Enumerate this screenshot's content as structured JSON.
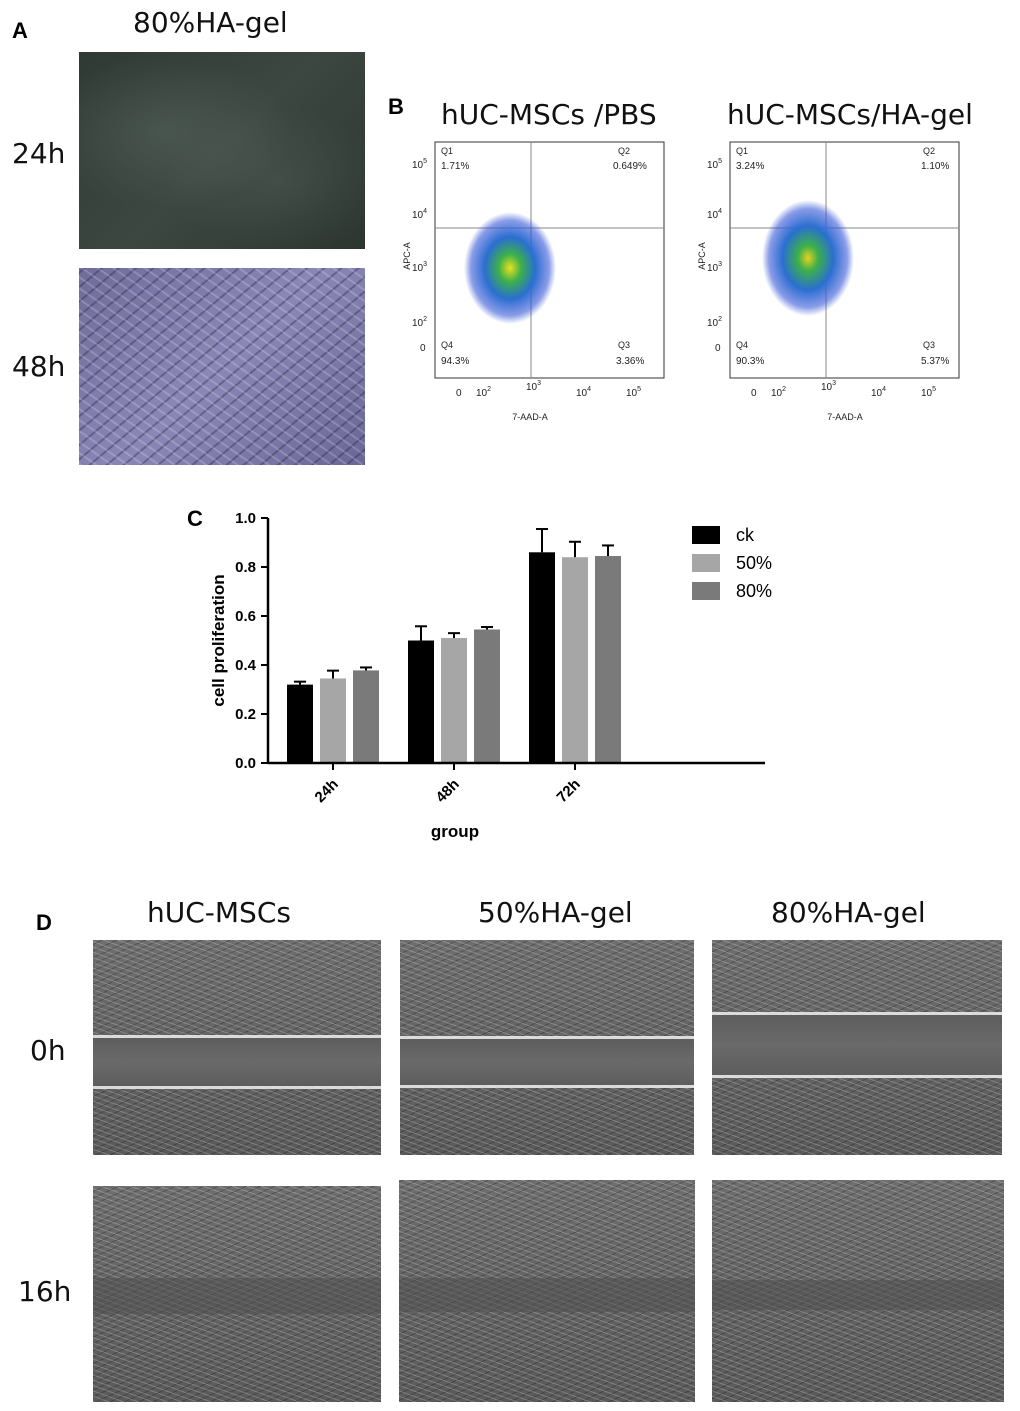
{
  "panel_a": {
    "letter": "A",
    "title": "80%HA-gel",
    "row_labels": [
      "24h",
      "48h"
    ]
  },
  "panel_b": {
    "letter": "B",
    "plots": [
      {
        "title": "hUC-MSCs /PBS",
        "xlabel": "7-AAD-A",
        "ylabel": "APC-A",
        "quadrants": [
          {
            "name": "Q1",
            "value": "1.71%"
          },
          {
            "name": "Q2",
            "value": "0.649%"
          },
          {
            "name": "Q3",
            "value": "3.36%"
          },
          {
            "name": "Q4",
            "value": "94.3%"
          }
        ]
      },
      {
        "title": "hUC-MSCs/HA-gel",
        "xlabel": "7-AAD-A",
        "ylabel": "APC-A",
        "quadrants": [
          {
            "name": "Q1",
            "value": "3.24%"
          },
          {
            "name": "Q2",
            "value": "1.10%"
          },
          {
            "name": "Q3",
            "value": "5.37%"
          },
          {
            "name": "Q4",
            "value": "90.3%"
          }
        ]
      }
    ]
  },
  "panel_c": {
    "letter": "C"
  },
  "panel_d": {
    "letter": "D",
    "column_titles": [
      "hUC-MSCs",
      "50%HA-gel",
      "80%HA-gel"
    ],
    "row_labels": [
      "0h",
      "16h"
    ]
  },
  "chart_data": {
    "type": "bar",
    "categories": [
      "24h",
      "48h",
      "72h"
    ],
    "series": [
      {
        "name": "ck",
        "color": "#000000",
        "values": [
          0.32,
          0.5,
          0.86
        ],
        "errors": [
          0.012,
          0.058,
          0.095
        ]
      },
      {
        "name": "50%",
        "color": "#a6a6a6",
        "values": [
          0.345,
          0.51,
          0.84
        ],
        "errors": [
          0.032,
          0.02,
          0.063
        ]
      },
      {
        "name": "80%",
        "color": "#7a7a7a",
        "values": [
          0.378,
          0.545,
          0.845
        ],
        "errors": [
          0.012,
          0.01,
          0.043
        ]
      }
    ],
    "ylim": [
      0,
      1.0
    ],
    "yticks": [
      "0.0",
      "0.2",
      "0.4",
      "0.6",
      "0.8",
      "1.0"
    ],
    "xlabel": "group",
    "ylabel": "cell proliferation",
    "legend_position": "top-right",
    "grid": false
  }
}
